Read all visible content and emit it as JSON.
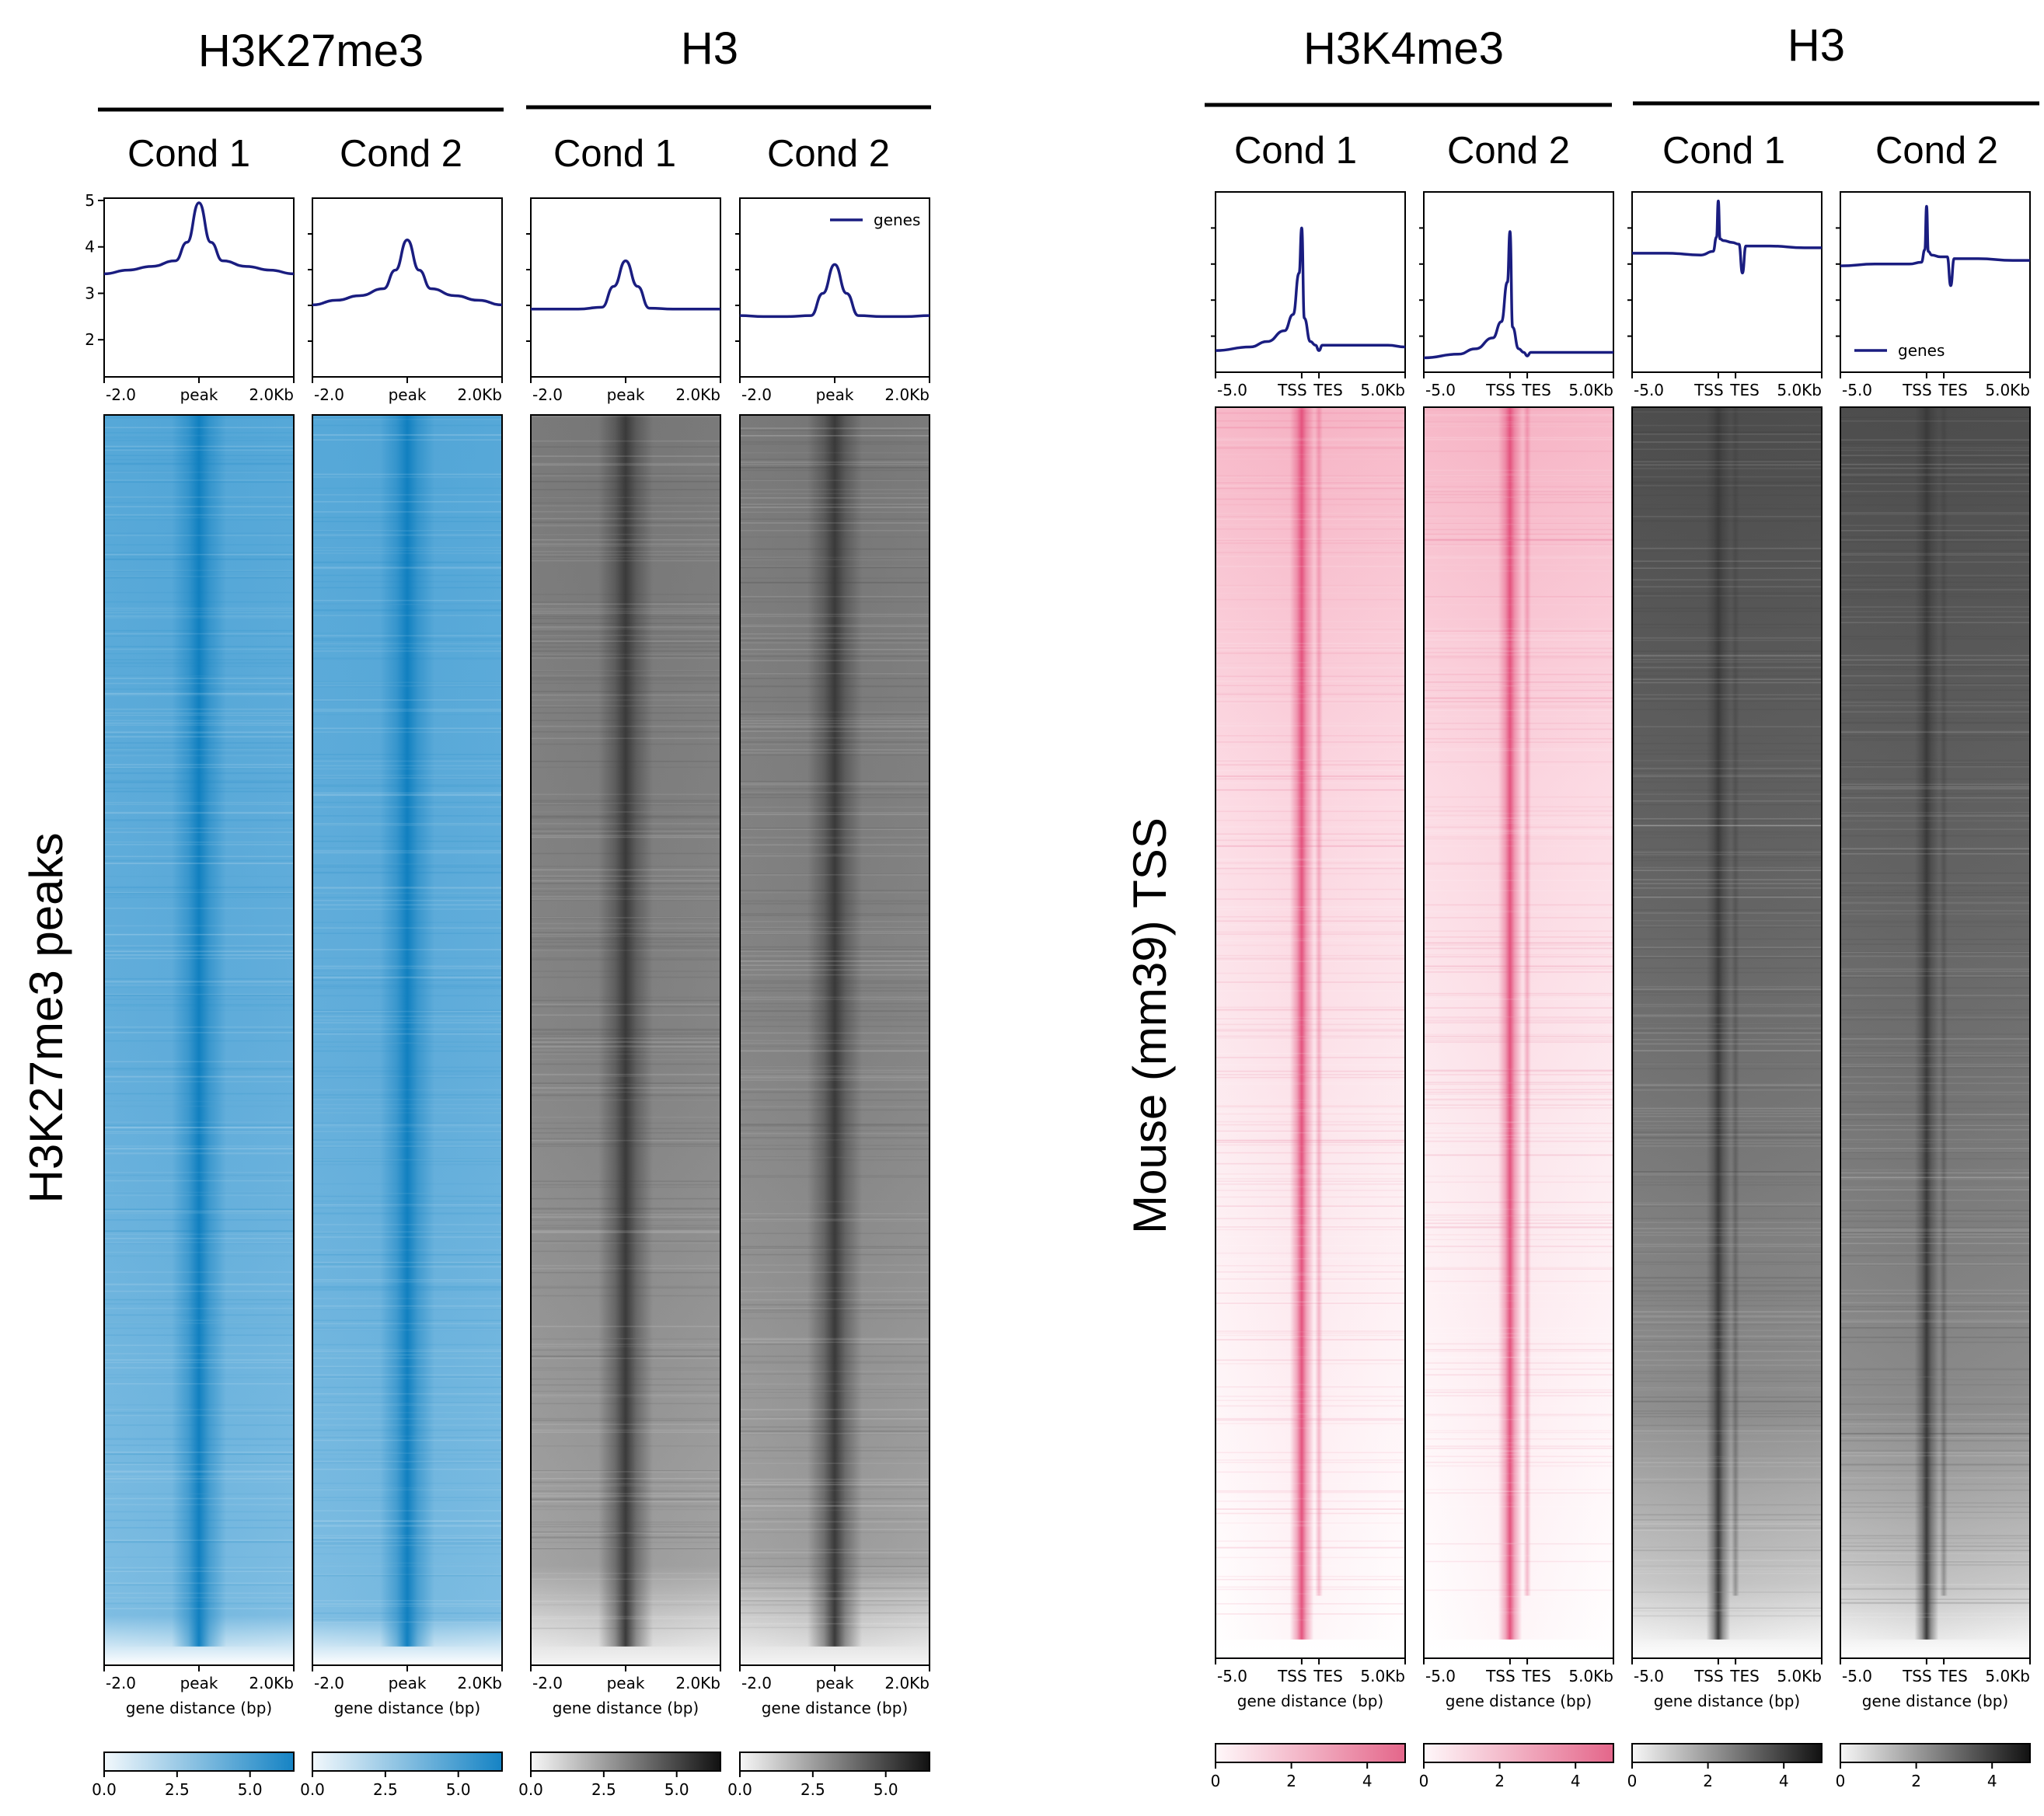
{
  "figure": {
    "left_block": {
      "group_titles": [
        "H3K27me3",
        "H3"
      ],
      "row_label": "H3K27me3 peaks"
    },
    "right_block": {
      "group_titles": [
        "H3K4me3",
        "H3"
      ],
      "row_label": "Mouse (mm39) TSS"
    },
    "cond_labels": [
      "Cond 1",
      "Cond 2"
    ],
    "legend_label": "genes",
    "xlabel": "gene distance (bp)",
    "line_color": "#1a1d80"
  },
  "chart_data": [
    {
      "type": "line",
      "panel": "H3K27me3 Cond 1",
      "series": [
        {
          "name": "genes"
        }
      ],
      "xticks": [
        "-2.0",
        "peak",
        "2.0Kb"
      ],
      "yticks": [
        "2",
        "3",
        "4",
        "5"
      ],
      "ylim": [
        1.2,
        5.05
      ],
      "x": [
        -2.0,
        -1.5,
        -1.0,
        -0.5,
        -0.25,
        0,
        0.25,
        0.5,
        1.0,
        1.5,
        2.0
      ],
      "y": [
        3.42,
        3.5,
        3.58,
        3.7,
        4.1,
        4.95,
        4.1,
        3.7,
        3.58,
        3.5,
        3.42
      ],
      "heatmap": {
        "colormap": "blues",
        "colorbar_ticks": [
          "0.0",
          "2.5",
          "5.0"
        ],
        "colorbar_range": [
          0,
          6.5
        ]
      }
    },
    {
      "type": "line",
      "panel": "H3K27me3 Cond 2",
      "series": [
        {
          "name": "genes"
        }
      ],
      "xticks": [
        "-2.0",
        "peak",
        "2.0Kb"
      ],
      "ylim": [
        1.2,
        5.05
      ],
      "x": [
        -2.0,
        -1.5,
        -1.0,
        -0.5,
        -0.25,
        0,
        0.25,
        0.5,
        1.0,
        1.5,
        2.0
      ],
      "y": [
        2.75,
        2.85,
        2.95,
        3.1,
        3.5,
        4.15,
        3.5,
        3.1,
        2.95,
        2.85,
        2.75
      ],
      "heatmap": {
        "colormap": "blues",
        "colorbar_ticks": [
          "0.0",
          "2.5",
          "5.0"
        ],
        "colorbar_range": [
          0,
          6.5
        ]
      }
    },
    {
      "type": "line",
      "panel": "H3 Cond 1",
      "series": [
        {
          "name": "genes"
        }
      ],
      "xticks": [
        "-2.0",
        "peak",
        "2.0Kb"
      ],
      "ylim": [
        1.2,
        5.05
      ],
      "x": [
        -2.0,
        -1.5,
        -1.0,
        -0.5,
        -0.25,
        0,
        0.25,
        0.5,
        1.0,
        1.5,
        2.0
      ],
      "y": [
        2.66,
        2.66,
        2.66,
        2.7,
        3.15,
        3.7,
        3.15,
        2.68,
        2.66,
        2.66,
        2.66
      ],
      "heatmap": {
        "colormap": "greys",
        "colorbar_ticks": [
          "0.0",
          "2.5",
          "5.0"
        ],
        "colorbar_range": [
          0,
          6.5
        ]
      }
    },
    {
      "type": "line",
      "panel": "H3 Cond 2",
      "series": [
        {
          "name": "genes"
        }
      ],
      "xticks": [
        "-2.0",
        "peak",
        "2.0Kb"
      ],
      "ylim": [
        1.2,
        5.05
      ],
      "x": [
        -2.0,
        -1.5,
        -1.0,
        -0.5,
        -0.25,
        0,
        0.25,
        0.5,
        1.0,
        1.5,
        2.0
      ],
      "y": [
        2.52,
        2.5,
        2.5,
        2.52,
        3.0,
        3.62,
        3.0,
        2.52,
        2.5,
        2.5,
        2.52
      ],
      "legend": "top-right",
      "heatmap": {
        "colormap": "greys",
        "colorbar_ticks": [
          "0.0",
          "2.5",
          "5.0"
        ],
        "colorbar_range": [
          0,
          6.5
        ]
      }
    },
    {
      "type": "line",
      "panel": "H3K4me3 Cond 1",
      "series": [
        {
          "name": "genes"
        }
      ],
      "xticks": [
        "-5.0",
        "TSS",
        "TES",
        "5.0Kb"
      ],
      "ylim": [
        0,
        1
      ],
      "x": [
        -5,
        -3,
        -2,
        -1,
        -0.5,
        -0.15,
        0,
        0.15,
        0.5,
        0.8,
        1,
        1.2,
        1.5,
        3,
        5,
        6
      ],
      "y": [
        0.12,
        0.14,
        0.17,
        0.23,
        0.32,
        0.55,
        0.8,
        0.3,
        0.17,
        0.15,
        0.12,
        0.15,
        0.15,
        0.15,
        0.15,
        0.14
      ],
      "heatmap": {
        "colormap": "pinks",
        "colorbar_ticks": [
          "0",
          "2",
          "4"
        ],
        "colorbar_range": [
          0,
          5
        ]
      }
    },
    {
      "type": "line",
      "panel": "H3K4me3 Cond 2",
      "series": [
        {
          "name": "genes"
        }
      ],
      "xticks": [
        "-5.0",
        "TSS",
        "TES",
        "5.0Kb"
      ],
      "ylim": [
        0,
        1
      ],
      "x": [
        -5,
        -3,
        -2,
        -1,
        -0.5,
        -0.15,
        0,
        0.15,
        0.5,
        0.8,
        1,
        1.2,
        1.5,
        3,
        5,
        6
      ],
      "y": [
        0.08,
        0.1,
        0.13,
        0.19,
        0.28,
        0.5,
        0.78,
        0.25,
        0.13,
        0.11,
        0.09,
        0.11,
        0.11,
        0.11,
        0.11,
        0.11
      ],
      "heatmap": {
        "colormap": "pinks",
        "colorbar_ticks": [
          "0",
          "2",
          "4"
        ],
        "colorbar_range": [
          0,
          5
        ]
      }
    },
    {
      "type": "line",
      "panel": "H3 Cond 1 (TSS)",
      "series": [
        {
          "name": "genes"
        }
      ],
      "xticks": [
        "-5.0",
        "TSS",
        "TES",
        "5.0Kb"
      ],
      "ylim": [
        0,
        1
      ],
      "x": [
        -5,
        -3,
        -1,
        -0.3,
        -0.1,
        0,
        0.1,
        0.3,
        0.8,
        1.2,
        1.4,
        1.6,
        2.0,
        3,
        5,
        6
      ],
      "y": [
        0.66,
        0.66,
        0.65,
        0.67,
        0.75,
        0.95,
        0.74,
        0.73,
        0.72,
        0.71,
        0.55,
        0.7,
        0.7,
        0.7,
        0.69,
        0.69
      ],
      "heatmap": {
        "colormap": "greys",
        "colorbar_ticks": [
          "0",
          "2",
          "4"
        ],
        "colorbar_range": [
          0,
          5
        ]
      }
    },
    {
      "type": "line",
      "panel": "H3 Cond 2 (TSS)",
      "series": [
        {
          "name": "genes"
        }
      ],
      "xticks": [
        "-5.0",
        "TSS",
        "TES",
        "5.0Kb"
      ],
      "ylim": [
        0,
        1
      ],
      "x": [
        -5,
        -3,
        -1,
        -0.3,
        -0.1,
        0,
        0.1,
        0.3,
        0.8,
        1.2,
        1.4,
        1.6,
        2.0,
        3,
        5,
        6
      ],
      "y": [
        0.59,
        0.6,
        0.6,
        0.61,
        0.68,
        0.92,
        0.67,
        0.65,
        0.64,
        0.64,
        0.48,
        0.63,
        0.63,
        0.63,
        0.62,
        0.62
      ],
      "legend": "bottom-left",
      "heatmap": {
        "colormap": "greys",
        "colorbar_ticks": [
          "0",
          "2",
          "4"
        ],
        "colorbar_range": [
          0,
          5
        ]
      }
    }
  ]
}
